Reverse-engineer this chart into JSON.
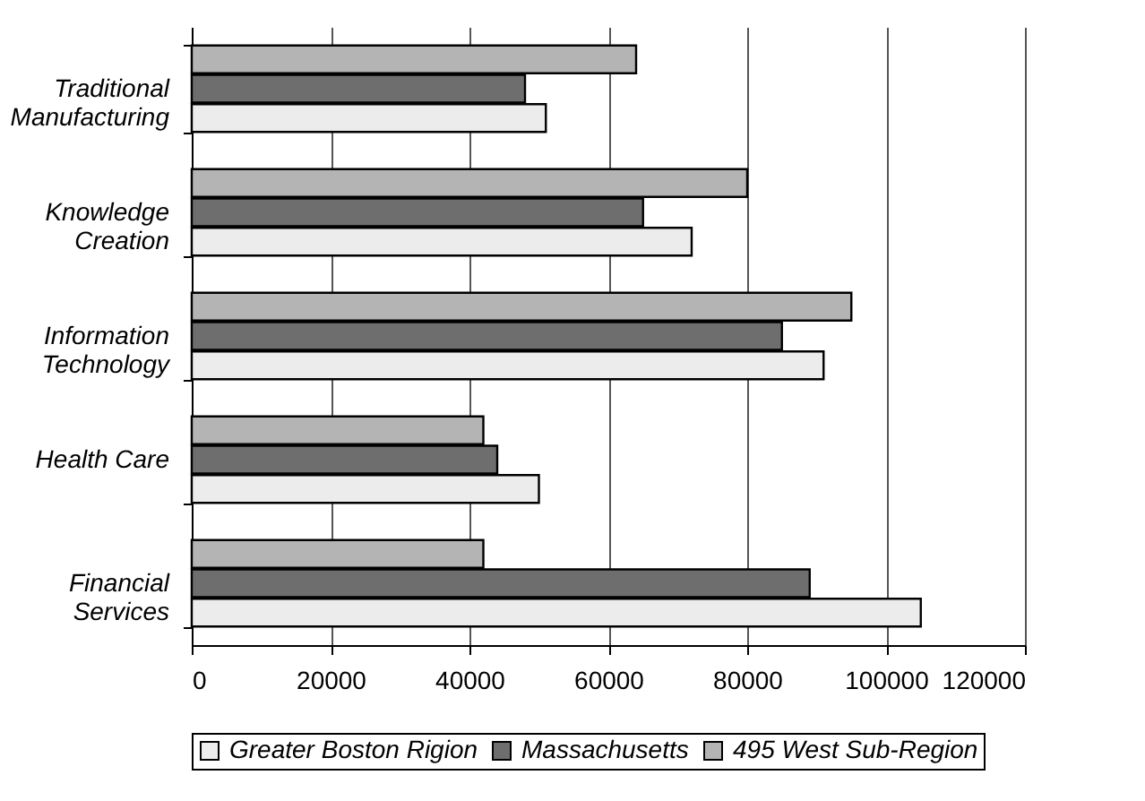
{
  "chart_data": {
    "type": "bar",
    "orientation": "horizontal",
    "categories": [
      "Traditional Manufacturing",
      "Knowledge Creation",
      "Information Technology",
      "Health Care",
      "Financial Services"
    ],
    "series": [
      {
        "name": "Greater Boston Rigion",
        "color": "#ececec",
        "values": [
          51000,
          72000,
          91000,
          50000,
          105000
        ]
      },
      {
        "name": "Massachusetts",
        "color": "#6e6e6e",
        "values": [
          48000,
          65000,
          85000,
          44000,
          89000
        ]
      },
      {
        "name": "495 West Sub-Region",
        "color": "#b4b4b4",
        "values": [
          64000,
          80000,
          95000,
          42000,
          42000
        ]
      }
    ],
    "xlim": [
      0,
      120000
    ],
    "xticks": [
      0,
      20000,
      40000,
      60000,
      80000,
      100000,
      120000
    ],
    "grid": "x",
    "legend": "bottom"
  }
}
